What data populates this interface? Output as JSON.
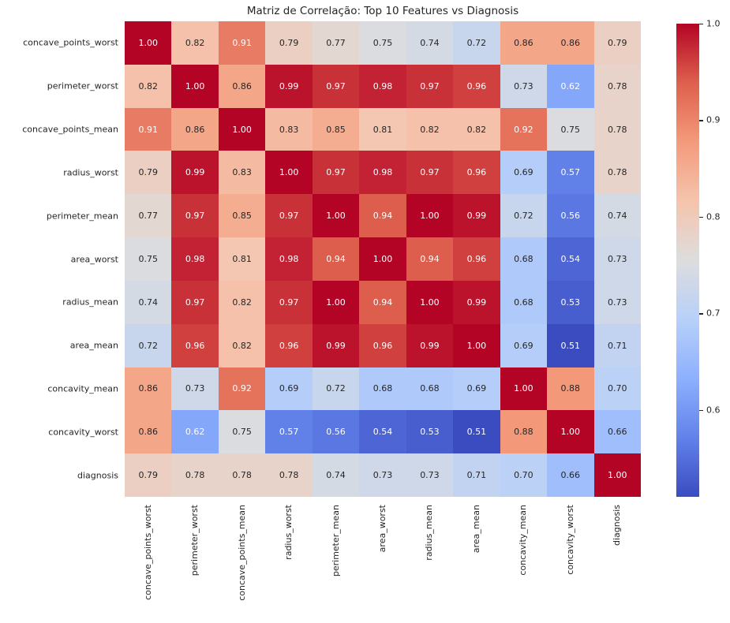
{
  "chart_data": {
    "type": "heatmap",
    "title": "Matriz de Correlação: Top 10 Features vs Diagnosis",
    "labels": [
      "concave_points_worst",
      "perimeter_worst",
      "concave_points_mean",
      "radius_worst",
      "perimeter_mean",
      "area_worst",
      "radius_mean",
      "area_mean",
      "concavity_mean",
      "concavity_worst",
      "diagnosis"
    ],
    "matrix": [
      [
        1.0,
        0.82,
        0.91,
        0.79,
        0.77,
        0.75,
        0.74,
        0.72,
        0.86,
        0.86,
        0.79
      ],
      [
        0.82,
        1.0,
        0.86,
        0.99,
        0.97,
        0.98,
        0.97,
        0.96,
        0.73,
        0.62,
        0.78
      ],
      [
        0.91,
        0.86,
        1.0,
        0.83,
        0.85,
        0.81,
        0.82,
        0.82,
        0.92,
        0.75,
        0.78
      ],
      [
        0.79,
        0.99,
        0.83,
        1.0,
        0.97,
        0.98,
        0.97,
        0.96,
        0.69,
        0.57,
        0.78
      ],
      [
        0.77,
        0.97,
        0.85,
        0.97,
        1.0,
        0.94,
        1.0,
        0.99,
        0.72,
        0.56,
        0.74
      ],
      [
        0.75,
        0.98,
        0.81,
        0.98,
        0.94,
        1.0,
        0.94,
        0.96,
        0.68,
        0.54,
        0.73
      ],
      [
        0.74,
        0.97,
        0.82,
        0.97,
        1.0,
        0.94,
        1.0,
        0.99,
        0.68,
        0.53,
        0.73
      ],
      [
        0.72,
        0.96,
        0.82,
        0.96,
        0.99,
        0.96,
        0.99,
        1.0,
        0.69,
        0.51,
        0.71
      ],
      [
        0.86,
        0.73,
        0.92,
        0.69,
        0.72,
        0.68,
        0.68,
        0.69,
        1.0,
        0.88,
        0.7
      ],
      [
        0.86,
        0.62,
        0.75,
        0.57,
        0.56,
        0.54,
        0.53,
        0.51,
        0.88,
        1.0,
        0.66
      ],
      [
        0.79,
        0.78,
        0.78,
        0.78,
        0.74,
        0.73,
        0.73,
        0.71,
        0.7,
        0.66,
        1.0
      ]
    ],
    "value_decimals": 2,
    "colormap": "coolwarm",
    "vmin": 0.51,
    "vmax": 1.0,
    "colorbar_ticks": [
      "1.0",
      "0.9",
      "0.8",
      "0.7",
      "0.6"
    ],
    "colorbar_tick_values": [
      1.0,
      0.9,
      0.8,
      0.7,
      0.6
    ],
    "grid_on": false,
    "colors": {
      "background": "#ffffff",
      "text": "#262626",
      "annot_dark": "#262626",
      "annot_light": "#ffffff",
      "colormap_anchors": [
        "#3b4cc0",
        "#6282ea",
        "#8db0fe",
        "#b8d0f9",
        "#dddddd",
        "#f5c4ad",
        "#f49a7b",
        "#de604d",
        "#b40426"
      ]
    }
  }
}
